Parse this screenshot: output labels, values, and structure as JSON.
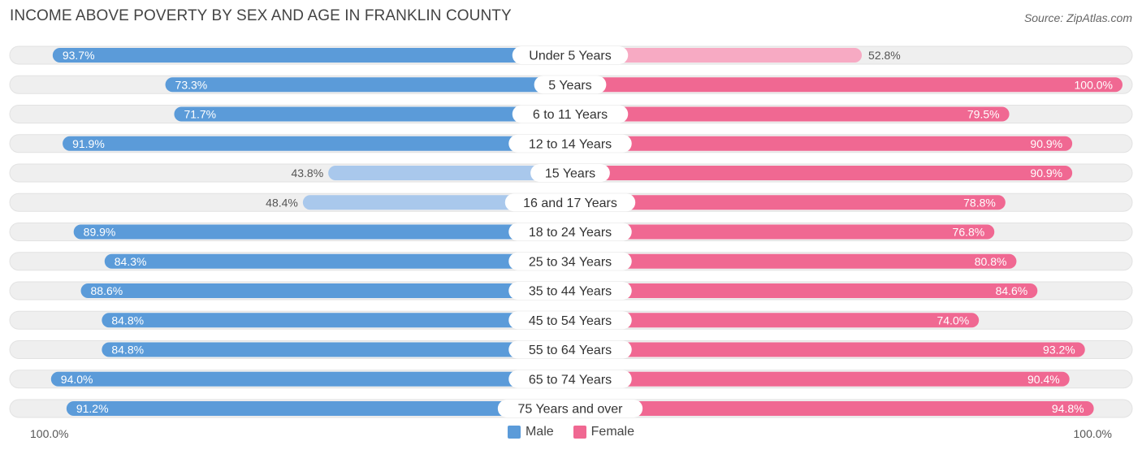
{
  "title": "INCOME ABOVE POVERTY BY SEX AND AGE IN FRANKLIN COUNTY",
  "source": "Source: ZipAtlas.com",
  "colors": {
    "male_dark": "#5b9bd9",
    "male_light": "#a9c8ec",
    "female_dark": "#f06892",
    "female_light": "#f7aac3",
    "track": "#efefef"
  },
  "axis": {
    "left_label": "100.0%",
    "right_label": "100.0%"
  },
  "legend": {
    "male": "Male",
    "female": "Female"
  },
  "chart_data": {
    "type": "bar",
    "orientation": "horizontal-diverging",
    "title": "INCOME ABOVE POVERTY BY SEX AND AGE IN FRANKLIN COUNTY",
    "xlim": [
      0,
      100
    ],
    "categories": [
      "Under 5 Years",
      "5 Years",
      "6 to 11 Years",
      "12 to 14 Years",
      "15 Years",
      "16 and 17 Years",
      "18 to 24 Years",
      "25 to 34 Years",
      "35 to 44 Years",
      "45 to 54 Years",
      "55 to 64 Years",
      "65 to 74 Years",
      "75 Years and over"
    ],
    "series": [
      {
        "name": "Male",
        "values": [
          93.7,
          73.3,
          71.7,
          91.9,
          43.8,
          48.4,
          89.9,
          84.3,
          88.6,
          84.8,
          84.8,
          94.0,
          91.2
        ],
        "labels": [
          "93.7%",
          "73.3%",
          "71.7%",
          "91.9%",
          "43.8%",
          "48.4%",
          "89.9%",
          "84.3%",
          "88.6%",
          "84.8%",
          "84.8%",
          "94.0%",
          "91.2%"
        ]
      },
      {
        "name": "Female",
        "values": [
          52.8,
          100.0,
          79.5,
          90.9,
          90.9,
          78.8,
          76.8,
          80.8,
          84.6,
          74.0,
          93.2,
          90.4,
          94.8
        ],
        "labels": [
          "52.8%",
          "100.0%",
          "79.5%",
          "90.9%",
          "90.9%",
          "78.8%",
          "76.8%",
          "80.8%",
          "84.6%",
          "74.0%",
          "93.2%",
          "90.4%",
          "94.8%"
        ]
      }
    ]
  }
}
